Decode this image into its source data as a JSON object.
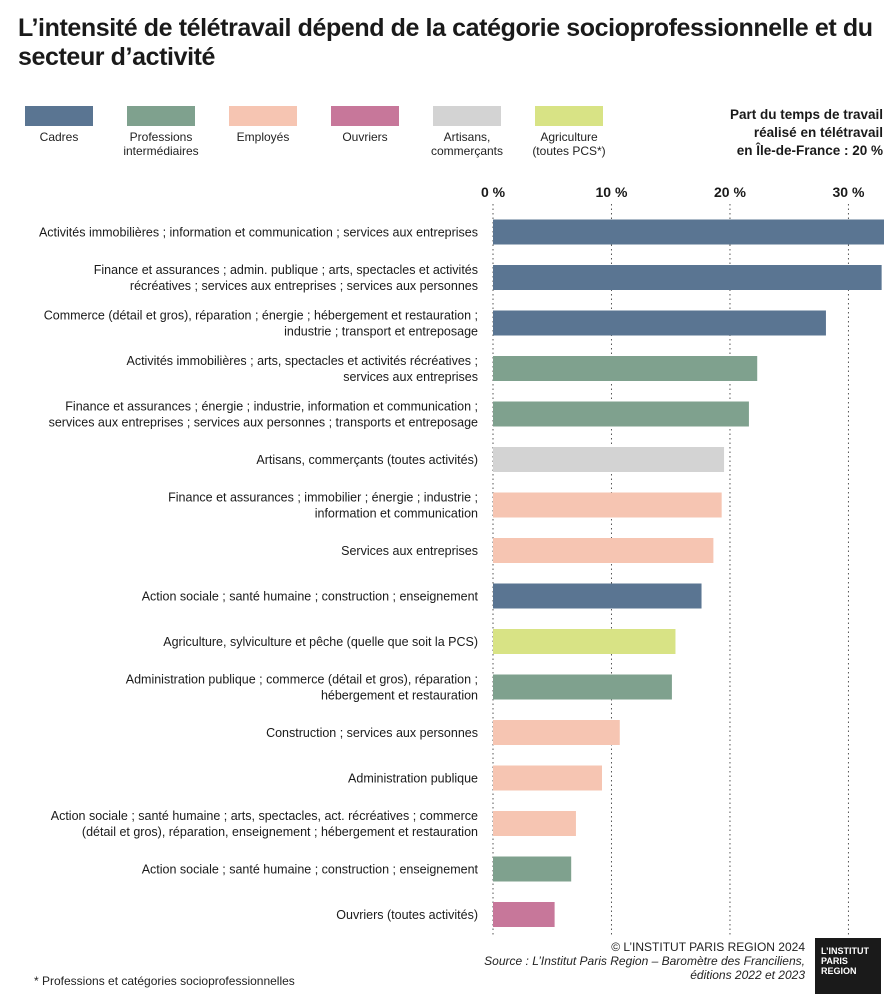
{
  "title": "L’intensité de télétravail dépend de la catégorie socioprofessionnelle et du secteur d’activité",
  "legend": [
    {
      "label_lines": [
        "Cadres"
      ],
      "color": "#5a7592"
    },
    {
      "label_lines": [
        "Professions",
        "intermédiaires"
      ],
      "color": "#7fa18e"
    },
    {
      "label_lines": [
        "Employés"
      ],
      "color": "#f6c5b2"
    },
    {
      "label_lines": [
        "Ouvriers"
      ],
      "color": "#c7779a"
    },
    {
      "label_lines": [
        "Artisans,",
        "commerçants"
      ],
      "color": "#d3d3d3"
    },
    {
      "label_lines": [
        "Agriculture",
        "(toutes PCS*)"
      ],
      "color": "#d8e385"
    }
  ],
  "note_lines": [
    "Part du temps de travail",
    "réalisé en télétravail",
    "en Île-de-France : 20 %"
  ],
  "footnote": "* Professions et catégories socioprofessionnelles",
  "credits": {
    "copyright": "© L’INSTITUT PARIS REGION 2024",
    "source_line1": "Source : L’Institut Paris Region – Baromètre des Franciliens,",
    "source_line2": "éditions 2022 et 2023"
  },
  "logo_lines": [
    "L’INSTITUT",
    "PARIS",
    "REGION"
  ],
  "chart_data": {
    "type": "bar",
    "orientation": "horizontal",
    "xticks": [
      "0 %",
      "10 %",
      "20 %",
      "30 %"
    ],
    "xtick_values": [
      0,
      10,
      20,
      30
    ],
    "xlim": [
      0,
      33
    ],
    "grid": "vertical dotted",
    "bars": [
      {
        "label_lines": [
          "Activités immobilières ; information et communication ; services aux entreprises"
        ],
        "value": 33,
        "category": "Cadres",
        "color": "#5a7592"
      },
      {
        "label_lines": [
          "Finance et assurances ; admin. publique ; arts, spectacles et activités",
          "récréatives ; services aux entreprises ; services aux personnes"
        ],
        "value": 32.8,
        "category": "Cadres",
        "color": "#5a7592"
      },
      {
        "label_lines": [
          "Commerce (détail et gros), réparation ; énergie ; hébergement et restauration ;",
          "industrie ; transport et entreposage"
        ],
        "value": 28.1,
        "category": "Cadres",
        "color": "#5a7592"
      },
      {
        "label_lines": [
          "Activités immobilières ; arts, spectacles et activités récréatives ;",
          "services aux entreprises"
        ],
        "value": 22.3,
        "category": "Professions intermédiaires",
        "color": "#7fa18e"
      },
      {
        "label_lines": [
          "Finance et assurances ; énergie ; industrie, information et communication ;",
          "services aux entreprises ; services aux personnes ; transports et entreposage"
        ],
        "value": 21.6,
        "category": "Professions intermédiaires",
        "color": "#7fa18e"
      },
      {
        "label_lines": [
          "Artisans, commerçants (toutes activités)"
        ],
        "value": 19.5,
        "category": "Artisans, commerçants",
        "color": "#d3d3d3"
      },
      {
        "label_lines": [
          "Finance et assurances ; immobilier ; énergie ; industrie ;",
          "information et communication"
        ],
        "value": 19.3,
        "category": "Employés",
        "color": "#f6c5b2"
      },
      {
        "label_lines": [
          "Services aux entreprises"
        ],
        "value": 18.6,
        "category": "Employés",
        "color": "#f6c5b2"
      },
      {
        "label_lines": [
          "Action sociale ; santé humaine ; construction ; enseignement"
        ],
        "value": 17.6,
        "category": "Cadres",
        "color": "#5a7592"
      },
      {
        "label_lines": [
          "Agriculture, sylviculture et pêche (quelle que soit la PCS)"
        ],
        "value": 15.4,
        "category": "Agriculture",
        "color": "#d8e385"
      },
      {
        "label_lines": [
          "Administration publique ; commerce (détail et gros), réparation ;",
          "hébergement et restauration"
        ],
        "value": 15.1,
        "category": "Professions intermédiaires",
        "color": "#7fa18e"
      },
      {
        "label_lines": [
          "Construction ; services aux personnes"
        ],
        "value": 10.7,
        "category": "Employés",
        "color": "#f6c5b2"
      },
      {
        "label_lines": [
          "Administration publique"
        ],
        "value": 9.2,
        "category": "Employés",
        "color": "#f6c5b2"
      },
      {
        "label_lines": [
          "Action sociale ; santé humaine ; arts, spectacles, act. récréatives ; commerce",
          "(détail et gros), réparation, enseignement ; hébergement et restauration"
        ],
        "value": 7.0,
        "category": "Employés",
        "color": "#f6c5b2"
      },
      {
        "label_lines": [
          "Action sociale ; santé humaine ; construction ; enseignement"
        ],
        "value": 6.6,
        "category": "Professions intermédiaires",
        "color": "#7fa18e"
      },
      {
        "label_lines": [
          "Ouvriers (toutes activités)"
        ],
        "value": 5.2,
        "category": "Ouvriers",
        "color": "#c7779a"
      }
    ]
  }
}
